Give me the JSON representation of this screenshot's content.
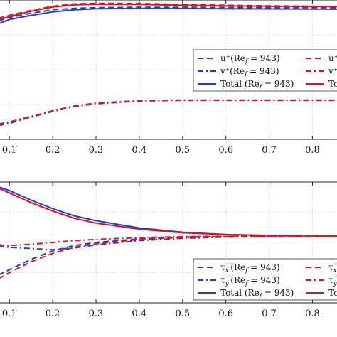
{
  "chart_data": [
    {
      "type": "line",
      "title": "",
      "xlabel": "",
      "ylabel": "",
      "xlim": [
        0.075,
        0.86
      ],
      "ylim": [
        0,
        1
      ],
      "grid": true,
      "legend_placement": "center-right",
      "x_tick_labels": [
        "0.1",
        "0.2",
        "0.3",
        "0.4",
        "0.5",
        "0.6",
        "0.7",
        "0.8"
      ],
      "x_tick_values": [
        0.1,
        0.2,
        0.3,
        0.4,
        0.5,
        0.6,
        0.7,
        0.8
      ],
      "series": [
        {
          "name": "u⁺(Re_f = 943)",
          "label": "u⁺(Re",
          "color": "#1f3fd1",
          "style": "dashed",
          "x": [
            0.075,
            0.1,
            0.15,
            0.2,
            0.25,
            0.3,
            0.4,
            0.5,
            0.6,
            0.7,
            0.8,
            0.86
          ],
          "y": [
            0.85,
            0.875,
            0.905,
            0.93,
            0.94,
            0.945,
            0.948,
            0.948,
            0.947,
            0.946,
            0.945,
            0.944
          ]
        },
        {
          "name": "v⁺(Re_f = 943)",
          "label": "v⁺(Re",
          "color": "#1f3fd1",
          "style": "dashdot",
          "x": [
            0.075,
            0.1,
            0.15,
            0.2,
            0.25,
            0.3,
            0.4,
            0.5,
            0.6,
            0.7,
            0.8,
            0.86
          ],
          "y": [
            0.1,
            0.115,
            0.16,
            0.2,
            0.235,
            0.255,
            0.275,
            0.28,
            0.28,
            0.28,
            0.28,
            0.28
          ]
        },
        {
          "name": "Total (Re_f = 943)",
          "label": "Total (Re",
          "color": "#1f3fd1",
          "style": "solid",
          "x": [
            0.075,
            0.1,
            0.15,
            0.2,
            0.25,
            0.3,
            0.4,
            0.5,
            0.6,
            0.7,
            0.8,
            0.86
          ],
          "y": [
            0.83,
            0.86,
            0.89,
            0.915,
            0.93,
            0.937,
            0.94,
            0.94,
            0.938,
            0.936,
            0.935,
            0.934
          ]
        },
        {
          "name": "u⁺",
          "label": "u⁺",
          "color": "#d9141e",
          "style": "dashed",
          "x": [
            0.075,
            0.1,
            0.15,
            0.2,
            0.25,
            0.3,
            0.4,
            0.5,
            0.6,
            0.7,
            0.8,
            0.86
          ],
          "y": [
            0.87,
            0.89,
            0.925,
            0.955,
            0.972,
            0.976,
            0.975,
            0.968,
            0.962,
            0.958,
            0.955,
            0.954
          ]
        },
        {
          "name": "v⁺",
          "label": "v⁺",
          "color": "#d9141e",
          "style": "dashdot",
          "x": [
            0.075,
            0.1,
            0.15,
            0.2,
            0.25,
            0.3,
            0.4,
            0.5,
            0.6,
            0.7,
            0.8,
            0.86
          ],
          "y": [
            0.11,
            0.125,
            0.165,
            0.205,
            0.24,
            0.26,
            0.278,
            0.282,
            0.282,
            0.282,
            0.282,
            0.282
          ]
        },
        {
          "name": "Total",
          "label": "Tot",
          "color": "#d9141e",
          "style": "solid",
          "x": [
            0.075,
            0.1,
            0.15,
            0.2,
            0.25,
            0.3,
            0.4,
            0.5,
            0.6,
            0.7,
            0.8,
            0.86
          ],
          "y": [
            0.86,
            0.88,
            0.92,
            0.95,
            0.965,
            0.97,
            0.968,
            0.962,
            0.958,
            0.955,
            0.953,
            0.952
          ]
        }
      ]
    },
    {
      "type": "line",
      "title": "",
      "xlabel": "",
      "ylabel": "",
      "xlim": [
        0.075,
        0.86
      ],
      "ylim": [
        0,
        1
      ],
      "grid": true,
      "legend_placement": "bottom-right",
      "x_tick_labels": [
        "0.1",
        "0.2",
        "0.3",
        "0.4",
        "0.5",
        "0.6",
        "0.7",
        "0.8"
      ],
      "x_tick_values": [
        0.1,
        0.2,
        0.3,
        0.4,
        0.5,
        0.6,
        0.7,
        0.8
      ],
      "series": [
        {
          "name": "τx⁺(Re_f = 943)",
          "label": "τ",
          "sub": "x",
          "tail": "(Re",
          "color": "#1f3fd1",
          "style": "dashed",
          "x": [
            0.075,
            0.1,
            0.15,
            0.2,
            0.25,
            0.3,
            0.4,
            0.5,
            0.6,
            0.7,
            0.8,
            0.86
          ],
          "y": [
            0.23,
            0.275,
            0.36,
            0.43,
            0.475,
            0.5,
            0.53,
            0.545,
            0.55,
            0.552,
            0.553,
            0.553
          ]
        },
        {
          "name": "τy⁺(Re_f = 943)",
          "label": "τ",
          "sub": "y",
          "tail": "(Re",
          "color": "#1f3fd1",
          "style": "dashdot",
          "x": [
            0.075,
            0.1,
            0.15,
            0.2,
            0.25,
            0.3,
            0.4,
            0.5,
            0.6,
            0.7,
            0.8,
            0.86
          ],
          "y": [
            0.47,
            0.46,
            0.45,
            0.44,
            0.455,
            0.48,
            0.515,
            0.535,
            0.545,
            0.55,
            0.552,
            0.553
          ]
        },
        {
          "name": "Total (Re_f = 943)",
          "label": "Total (Re",
          "color": "#1f3fd1",
          "style": "solid",
          "x": [
            0.075,
            0.1,
            0.15,
            0.2,
            0.25,
            0.3,
            0.4,
            0.5,
            0.6,
            0.7,
            0.8,
            0.86
          ],
          "y": [
            0.96,
            0.93,
            0.85,
            0.78,
            0.72,
            0.68,
            0.62,
            0.585,
            0.565,
            0.558,
            0.555,
            0.554
          ]
        },
        {
          "name": "τx⁺",
          "label": "τ",
          "sub": "x",
          "color": "#d9141e",
          "style": "dashed",
          "x": [
            0.075,
            0.1,
            0.15,
            0.2,
            0.25,
            0.3,
            0.4,
            0.5,
            0.6,
            0.7,
            0.8,
            0.86
          ],
          "y": [
            0.2,
            0.25,
            0.34,
            0.41,
            0.46,
            0.49,
            0.525,
            0.542,
            0.549,
            0.552,
            0.553,
            0.553
          ]
        },
        {
          "name": "τy⁺",
          "label": "τ",
          "sub": "y",
          "color": "#d9141e",
          "style": "dashdot",
          "x": [
            0.075,
            0.1,
            0.15,
            0.2,
            0.25,
            0.3,
            0.4,
            0.5,
            0.6,
            0.7,
            0.8,
            0.86
          ],
          "y": [
            0.48,
            0.475,
            0.485,
            0.5,
            0.515,
            0.525,
            0.54,
            0.548,
            0.551,
            0.553,
            0.553,
            0.553
          ]
        },
        {
          "name": "Total",
          "label": "Tot",
          "color": "#d9141e",
          "style": "solid",
          "x": [
            0.075,
            0.1,
            0.15,
            0.2,
            0.25,
            0.3,
            0.4,
            0.5,
            0.6,
            0.7,
            0.8,
            0.86
          ],
          "y": [
            0.95,
            0.91,
            0.83,
            0.76,
            0.7,
            0.66,
            0.61,
            0.58,
            0.565,
            0.558,
            0.555,
            0.554
          ]
        }
      ]
    }
  ]
}
